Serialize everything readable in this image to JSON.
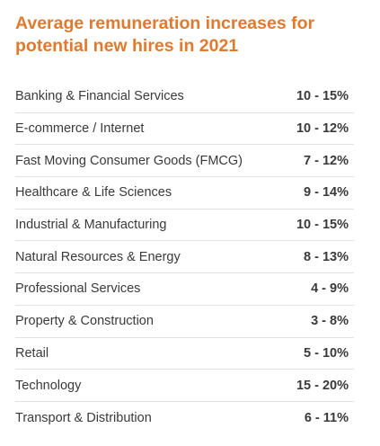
{
  "title": "Average remuneration increases for potential new hires in 2021",
  "colors": {
    "title": "#e07a2e",
    "text": "#3a3a3a",
    "divider": "#e2e2e2"
  },
  "rows": [
    {
      "industry": "Banking & Financial Services",
      "range": "10 - 15%"
    },
    {
      "industry": "E-commerce / Internet",
      "range": "10 - 12%"
    },
    {
      "industry": "Fast Moving Consumer Goods (FMCG)",
      "range": "7 - 12%"
    },
    {
      "industry": "Healthcare & Life Sciences",
      "range": "9 - 14%"
    },
    {
      "industry": "Industrial & Manufacturing",
      "range": "10 - 15%"
    },
    {
      "industry": "Natural Resources & Energy",
      "range": "8 - 13%"
    },
    {
      "industry": "Professional Services",
      "range": "4 - 9%"
    },
    {
      "industry": "Property & Construction",
      "range": "3 - 8%"
    },
    {
      "industry": "Retail",
      "range": "5 - 10%"
    },
    {
      "industry": "Technology",
      "range": "15 - 20%"
    },
    {
      "industry": "Transport & Distribution",
      "range": "6 - 11%"
    }
  ]
}
